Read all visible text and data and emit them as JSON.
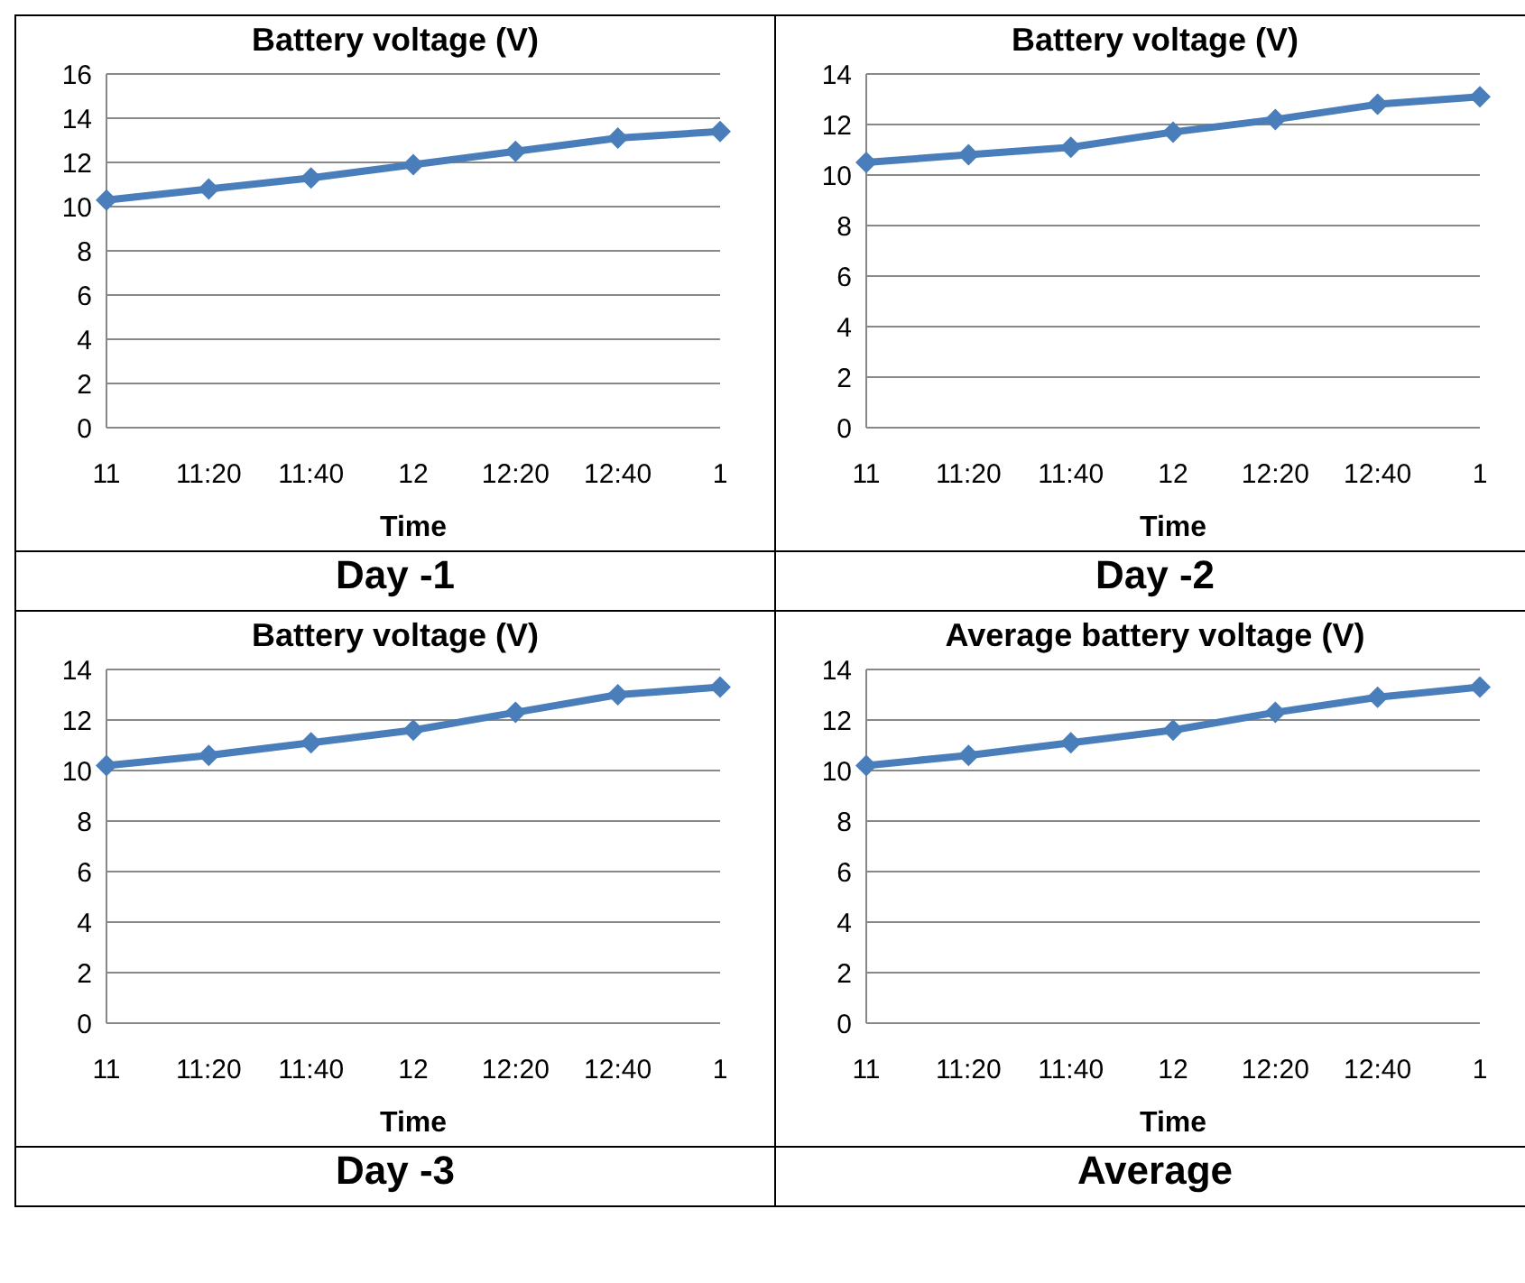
{
  "chart_data": [
    {
      "type": "line",
      "title": "Battery voltage (V)",
      "xlabel": "Time",
      "categories": [
        "11",
        "11:20",
        "11:40",
        "12",
        "12:20",
        "12:40",
        "1"
      ],
      "series": [
        {
          "color": "#4a7ebb",
          "values": [
            10.3,
            10.8,
            11.3,
            11.9,
            12.5,
            13.1,
            13.4
          ]
        }
      ],
      "ylim": [
        0,
        16
      ],
      "yticks": [
        0,
        2,
        4,
        6,
        8,
        10,
        12,
        14,
        16
      ],
      "grid": "y",
      "marker": "diamond",
      "annotations": [
        "Day -1"
      ]
    },
    {
      "type": "line",
      "title": "Battery voltage (V)",
      "xlabel": "Time",
      "categories": [
        "11",
        "11:20",
        "11:40",
        "12",
        "12:20",
        "12:40",
        "1"
      ],
      "series": [
        {
          "color": "#4a7ebb",
          "values": [
            10.5,
            10.8,
            11.1,
            11.7,
            12.2,
            12.8,
            13.1
          ]
        }
      ],
      "ylim": [
        0,
        14
      ],
      "yticks": [
        0,
        2,
        4,
        6,
        8,
        10,
        12,
        14
      ],
      "grid": "y",
      "marker": "diamond",
      "annotations": [
        "Day -2"
      ]
    },
    {
      "type": "line",
      "title": "Battery voltage (V)",
      "xlabel": "Time",
      "categories": [
        "11",
        "11:20",
        "11:40",
        "12",
        "12:20",
        "12:40",
        "1"
      ],
      "series": [
        {
          "color": "#4a7ebb",
          "values": [
            10.2,
            10.6,
            11.1,
            11.6,
            12.3,
            13.0,
            13.3
          ]
        }
      ],
      "ylim": [
        0,
        14
      ],
      "yticks": [
        0,
        2,
        4,
        6,
        8,
        10,
        12,
        14
      ],
      "grid": "y",
      "marker": "diamond",
      "annotations": [
        "Day -3"
      ]
    },
    {
      "type": "line",
      "title": "Average battery voltage (V)",
      "xlabel": "Time",
      "categories": [
        "11",
        "11:20",
        "11:40",
        "12",
        "12:20",
        "12:40",
        "1"
      ],
      "series": [
        {
          "color": "#4a7ebb",
          "values": [
            10.2,
            10.6,
            11.1,
            11.6,
            12.3,
            12.9,
            13.3
          ]
        }
      ],
      "ylim": [
        0,
        14
      ],
      "yticks": [
        0,
        2,
        4,
        6,
        8,
        10,
        12,
        14
      ],
      "grid": "y",
      "marker": "diamond",
      "annotations": [
        "Average"
      ]
    }
  ]
}
